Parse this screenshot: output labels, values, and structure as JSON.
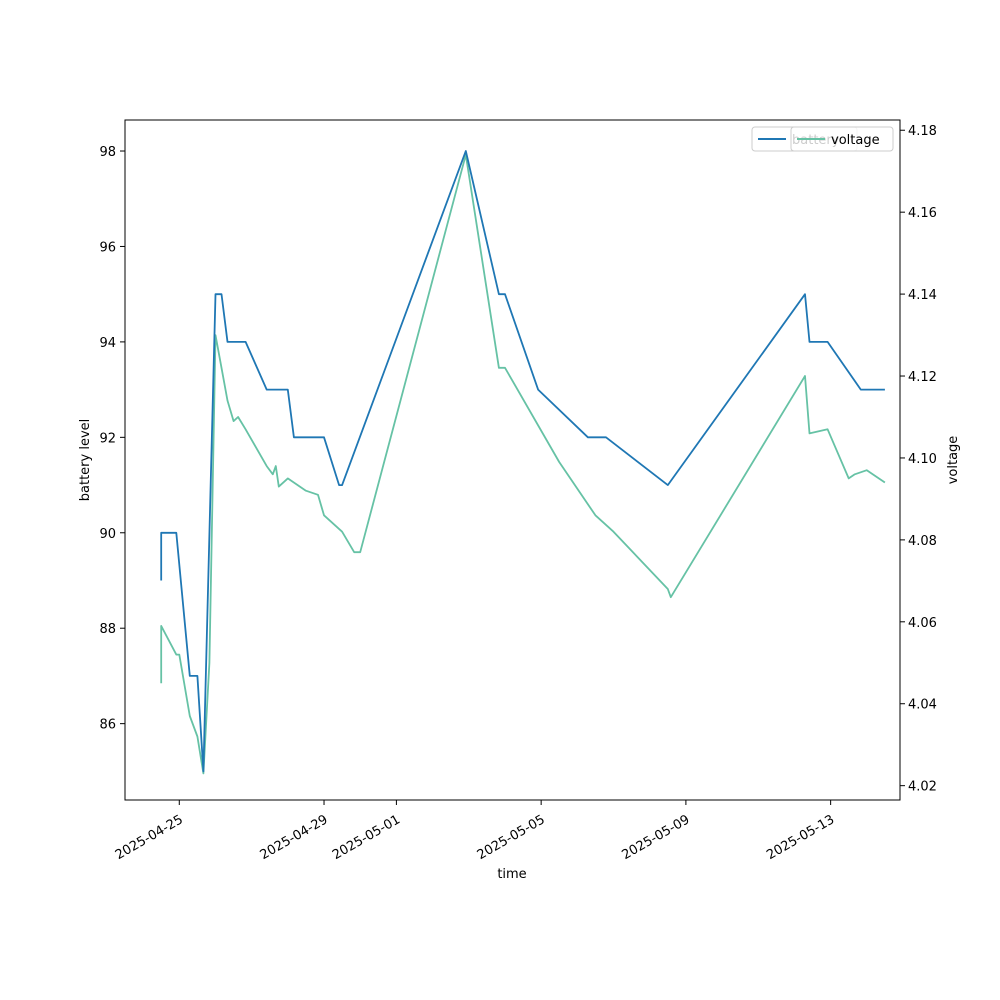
{
  "chart_data": {
    "type": "line",
    "xlabel": "time",
    "ylabel_left": "battery level",
    "ylabel_right": "voltage",
    "xlim": [
      "2025-04-23T12:00",
      "2025-05-14T22:00"
    ],
    "ylim_left": [
      84.4,
      98.65
    ],
    "ylim_right": [
      4.0165,
      4.1825
    ],
    "x_ticks": [
      "2025-04-25",
      "2025-04-29",
      "2025-05-01",
      "2025-05-05",
      "2025-05-09",
      "2025-05-13"
    ],
    "y_ticks_left": [
      86,
      88,
      90,
      92,
      94,
      96,
      98
    ],
    "y_ticks_right": [
      4.02,
      4.04,
      4.06,
      4.08,
      4.1,
      4.12,
      4.14,
      4.16,
      4.18
    ],
    "grid": false,
    "legend_position": "top-right",
    "series": [
      {
        "name": "battery",
        "axis": "left",
        "color": "#1f77b4",
        "points": [
          [
            "2025-04-24T12:00",
            89
          ],
          [
            "2025-04-24T12:00",
            90
          ],
          [
            "2025-04-24T22:00",
            90
          ],
          [
            "2025-04-25T07:00",
            87
          ],
          [
            "2025-04-25T12:00",
            87
          ],
          [
            "2025-04-25T16:00",
            85
          ],
          [
            "2025-04-26T00:00",
            95
          ],
          [
            "2025-04-26T04:00",
            95
          ],
          [
            "2025-04-26T08:00",
            94
          ],
          [
            "2025-04-26T20:00",
            94
          ],
          [
            "2025-04-27T10:00",
            93
          ],
          [
            "2025-04-28T00:00",
            93
          ],
          [
            "2025-04-28T04:00",
            92
          ],
          [
            "2025-04-29T00:00",
            92
          ],
          [
            "2025-04-29T10:00",
            91
          ],
          [
            "2025-04-29T12:00",
            91
          ],
          [
            "2025-05-02T22:00",
            98
          ],
          [
            "2025-05-03T20:00",
            95
          ],
          [
            "2025-05-04T00:00",
            95
          ],
          [
            "2025-05-04T22:00",
            93
          ],
          [
            "2025-05-06T07:00",
            92
          ],
          [
            "2025-05-06T19:00",
            92
          ],
          [
            "2025-05-08T12:00",
            91
          ],
          [
            "2025-05-12T07:00",
            95
          ],
          [
            "2025-05-12T10:00",
            94
          ],
          [
            "2025-05-12T22:00",
            94
          ],
          [
            "2025-05-13T20:00",
            93
          ],
          [
            "2025-05-14T12:00",
            93
          ]
        ]
      },
      {
        "name": "voltage",
        "axis": "right",
        "color": "#66c2a5",
        "points": [
          [
            "2025-04-24T12:00",
            4.045
          ],
          [
            "2025-04-24T12:00",
            4.059
          ],
          [
            "2025-04-24T22:00",
            4.052
          ],
          [
            "2025-04-25T00:00",
            4.052
          ],
          [
            "2025-04-25T07:00",
            4.037
          ],
          [
            "2025-04-25T12:00",
            4.032
          ],
          [
            "2025-04-25T16:00",
            4.023
          ],
          [
            "2025-04-25T20:00",
            4.05
          ],
          [
            "2025-04-26T00:00",
            4.13
          ],
          [
            "2025-04-26T04:00",
            4.122
          ],
          [
            "2025-04-26T08:00",
            4.114
          ],
          [
            "2025-04-26T12:00",
            4.109
          ],
          [
            "2025-04-26T15:00",
            4.11
          ],
          [
            "2025-04-26T20:00",
            4.107
          ],
          [
            "2025-04-27T10:00",
            4.098
          ],
          [
            "2025-04-27T14:00",
            4.096
          ],
          [
            "2025-04-27T16:00",
            4.098
          ],
          [
            "2025-04-27T18:00",
            4.093
          ],
          [
            "2025-04-28T00:00",
            4.095
          ],
          [
            "2025-04-28T12:00",
            4.092
          ],
          [
            "2025-04-28T20:00",
            4.091
          ],
          [
            "2025-04-29T00:00",
            4.086
          ],
          [
            "2025-04-29T12:00",
            4.082
          ],
          [
            "2025-04-29T20:00",
            4.077
          ],
          [
            "2025-04-30T00:00",
            4.077
          ],
          [
            "2025-05-02T22:00",
            4.174
          ],
          [
            "2025-05-03T20:00",
            4.122
          ],
          [
            "2025-05-04T00:00",
            4.122
          ],
          [
            "2025-05-05T12:00",
            4.099
          ],
          [
            "2025-05-06T12:00",
            4.086
          ],
          [
            "2025-05-07T00:00",
            4.082
          ],
          [
            "2025-05-08T12:00",
            4.068
          ],
          [
            "2025-05-08T14:00",
            4.066
          ],
          [
            "2025-05-12T07:00",
            4.12
          ],
          [
            "2025-05-12T10:00",
            4.106
          ],
          [
            "2025-05-12T22:00",
            4.107
          ],
          [
            "2025-05-13T12:00",
            4.095
          ],
          [
            "2025-05-13T16:00",
            4.096
          ],
          [
            "2025-05-14T00:00",
            4.097
          ],
          [
            "2025-05-14T12:00",
            4.094
          ]
        ]
      }
    ],
    "legend": [
      {
        "label": "battery",
        "series": 0
      },
      {
        "label": "voltage",
        "series": 1
      }
    ]
  }
}
